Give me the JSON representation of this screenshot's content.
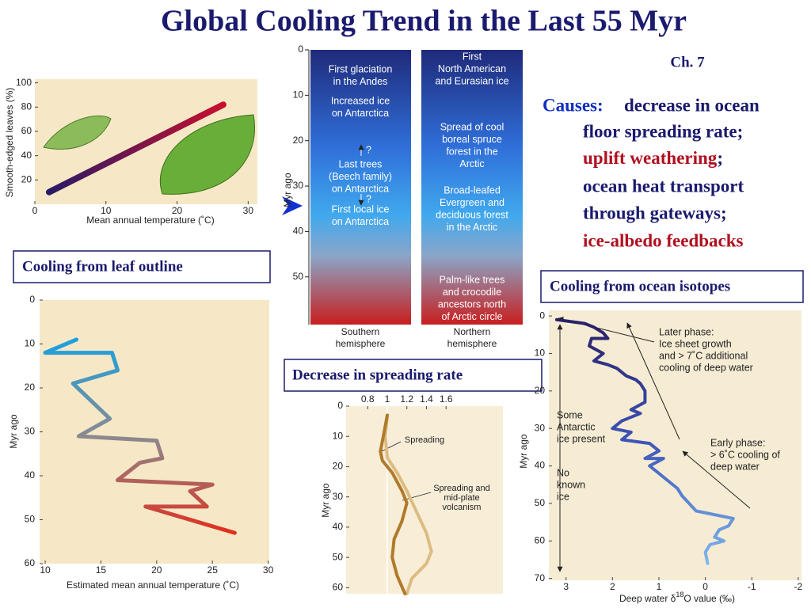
{
  "title": "Global Cooling Trend in the Last 55 Myr",
  "chapter": "Ch. 7",
  "causes": {
    "label": "Causes:",
    "parts": [
      "decrease in ocean",
      "floor spreading rate;",
      "uplift weathering",
      ";",
      "ocean heat transport",
      "through gateways;",
      "ice-albedo feedbacks"
    ]
  },
  "captions": [
    "Cooling from leaf outline",
    "Decrease in spreading rate",
    "Cooling from ocean isotopes"
  ],
  "hemispheres": {
    "ylim": [
      0,
      60.5
    ],
    "yticks": [
      0,
      10,
      20,
      30,
      40,
      50
    ],
    "ylabel": "Myr ago",
    "southern": {
      "label": [
        "Southern",
        "hemisphere"
      ],
      "events": [
        [
          "First glaciation",
          "in the Andes"
        ],
        [
          "Increased ice",
          "on Antarctica"
        ],
        [
          "Last trees",
          "(Beech family)",
          "on Antarctica"
        ],
        [
          "First local ice",
          "on Antarctica"
        ]
      ],
      "queries": [
        "?",
        "?"
      ]
    },
    "northern": {
      "label": [
        "Northern",
        "hemisphere"
      ],
      "events": [
        [
          "First",
          "North American",
          "and Eurasian ice"
        ],
        [
          "Spread of cool",
          "boreal spruce",
          "forest in the",
          "Arctic"
        ],
        [
          "Broad-leafed",
          "Evergreen and",
          "deciduous forest",
          "in the Arctic"
        ],
        [
          "Palm-like trees",
          "and crocodile",
          "ancestors north",
          "of Arctic circle"
        ]
      ]
    }
  },
  "chart_data": [
    {
      "type": "line",
      "xlabel": "Mean annual temperature (˚C)",
      "ylabel": "Smooth-edged leaves (%)",
      "xlim": [
        0,
        31.3
      ],
      "ylim": [
        0,
        103
      ],
      "xticks": [
        0,
        10,
        20,
        30
      ],
      "yticks": [
        20,
        40,
        60,
        80,
        100
      ],
      "series": [
        {
          "colors": [
            "#2a1a66",
            "#c8102e"
          ],
          "x": [
            2,
            26.5
          ],
          "values": [
            10,
            82
          ]
        }
      ]
    },
    {
      "type": "line",
      "xlabel": "Estimated mean annual temperature (˚C)",
      "ylabel": "Myr ago",
      "y_inverted": true,
      "xlim": [
        9.5,
        30.1
      ],
      "ylim": [
        0,
        60
      ],
      "xticks": [
        10,
        15,
        20,
        25,
        30
      ],
      "yticks": [
        0,
        10,
        20,
        30,
        40,
        50,
        60
      ],
      "series": [
        {
          "colors": [
            "#1aa0e0",
            "#8a8a90",
            "#e03020"
          ],
          "x": [
            12.8,
            10,
            16,
            16.5,
            12.5,
            15.8,
            13,
            20,
            20.5,
            18.5,
            16.5,
            25,
            23,
            24.5,
            19,
            27
          ],
          "values": [
            9,
            12,
            12,
            16,
            19,
            27,
            31,
            32,
            36,
            37,
            41,
            42,
            43.5,
            47,
            47,
            53
          ]
        }
      ]
    },
    {
      "type": "line",
      "ylabel": "Myr ago",
      "y_inverted": true,
      "xlim": [
        0.58,
        2.18
      ],
      "ylim": [
        0,
        62
      ],
      "xticks": [
        0.8,
        1.0,
        1.2,
        1.4,
        1.6
      ],
      "yticks": [
        0,
        10,
        20,
        30,
        40,
        50,
        60
      ],
      "series": [
        {
          "name": "Spreading and mid-plate volcanism",
          "color": "#dcbc82",
          "x": [
            1.0,
            0.98,
            1.0,
            1.1,
            1.2,
            1.3,
            1.4,
            1.45,
            1.4,
            1.25,
            1.2
          ],
          "values": [
            3,
            10,
            17,
            22,
            28,
            35,
            42,
            48,
            52,
            57,
            62
          ]
        },
        {
          "name": "Spreading",
          "color": "#b07a2a",
          "x": [
            1.0,
            0.96,
            0.93,
            0.95,
            1.05,
            1.15,
            1.2,
            1.15,
            1.07,
            1.05,
            1.1,
            1.18
          ],
          "values": [
            3,
            10,
            15,
            18,
            22,
            28,
            32,
            38,
            44,
            50,
            56,
            62
          ]
        }
      ]
    },
    {
      "type": "line",
      "xlabel": [
        "Deep water δ",
        "18",
        "O value (‰)"
      ],
      "ylabel": "Myr ago",
      "y_inverted": true,
      "xlim": [
        3.37,
        -2.07
      ],
      "ylim": [
        -1.5,
        70.5
      ],
      "xticks": [
        3,
        2,
        1,
        0,
        -1,
        -2
      ],
      "yticks": [
        0,
        10,
        20,
        30,
        40,
        50,
        60,
        70
      ],
      "annotations": [
        [
          "Later phase:",
          "Ice sheet growth",
          "and > 7˚C additional",
          "cooling of deep water"
        ],
        [
          "Some",
          "Antarctic",
          "ice present"
        ],
        [
          "Early phase:",
          "> 6˚C cooling of",
          "deep water"
        ],
        [
          "No",
          "known",
          "ice"
        ]
      ],
      "series": [
        {
          "colors": [
            "#2a1f66",
            "#3d55b8",
            "#7fb6ee"
          ],
          "x": [
            3.2,
            2.6,
            2.4,
            2.2,
            2.1,
            2.45,
            2.5,
            2.2,
            2.4,
            2.1,
            1.9,
            1.7,
            1.5,
            1.4,
            1.3,
            1.3,
            1.6,
            1.4,
            1.8,
            2.0,
            1.6,
            1.8,
            1.2,
            1.0,
            1.3,
            0.9,
            1.2,
            1.0,
            0.8,
            0.6,
            0.5,
            0.35,
            0.2,
            -0.6,
            -0.5,
            -0.3,
            -0.2,
            -0.4,
            -0.1,
            0,
            -0.05
          ],
          "values": [
            1,
            2,
            3,
            4.5,
            6,
            6,
            8,
            10,
            12,
            13,
            14,
            16,
            17,
            18,
            20,
            23,
            25,
            26,
            28,
            30,
            31,
            33,
            34,
            36,
            38,
            38,
            40,
            42,
            44,
            46,
            48,
            50,
            52,
            54,
            56,
            57,
            59,
            60,
            61,
            63,
            66
          ]
        }
      ]
    }
  ]
}
